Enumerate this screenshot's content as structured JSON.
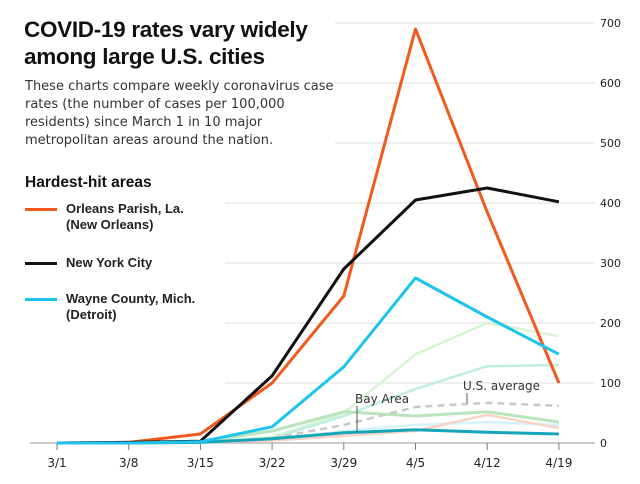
{
  "title": "COVID-19 rates vary widely among large U.S. cities",
  "subtitle": "These charts compare weekly coronavirus case rates (the number of cases per 100,000 residents) since March 1 in 10 major metropolitan areas around the nation.",
  "legend": {
    "heading": "Hardest-hit areas",
    "items": [
      {
        "line1": "Orleans Parish, La.",
        "line2": "(New Orleans)",
        "color": "#f25a1d"
      },
      {
        "line1": "New York City",
        "line2": "",
        "color": "#111111"
      },
      {
        "line1": "Wayne County, Mich.",
        "line2": "(Detroit)",
        "color": "#1ec3ee"
      }
    ]
  },
  "chart_data": {
    "type": "line",
    "categories": [
      "3/1",
      "3/8",
      "3/15",
      "3/22",
      "3/29",
      "4/5",
      "4/12",
      "4/19"
    ],
    "ylim": [
      0,
      700
    ],
    "yticks": [
      0,
      100,
      200,
      300,
      400,
      500,
      600,
      700
    ],
    "grid": true,
    "annotations": [
      "Bay Area",
      "U.S. average"
    ],
    "series": [
      {
        "name": "",
        "color": "#d7f5d3",
        "width": 2.5,
        "values": [
          0,
          0,
          1,
          10,
          50,
          148,
          200,
          178
        ]
      },
      {
        "name": "",
        "color": "#bfeede",
        "width": 2.5,
        "values": [
          0,
          0,
          1,
          8,
          45,
          90,
          128,
          130
        ]
      },
      {
        "name": "",
        "color": "#d4f3fb",
        "width": 2.5,
        "values": [
          0,
          0,
          1,
          5,
          20,
          30,
          35,
          30
        ]
      },
      {
        "name": "",
        "color": "#f9d4c6",
        "width": 2.5,
        "values": [
          0,
          0,
          1,
          4,
          12,
          20,
          47,
          25
        ]
      },
      {
        "name": "",
        "color": "#b9e4bd",
        "width": 3,
        "values": [
          0,
          0,
          2,
          20,
          52,
          45,
          52,
          35
        ]
      },
      {
        "name": "U.S. average",
        "color": "#c8c8c8",
        "width": 2.5,
        "dashed": true,
        "values": [
          0,
          0,
          1,
          8,
          30,
          60,
          67,
          62
        ]
      },
      {
        "name": "Bay Area",
        "color": "#14a5b8",
        "width": 3,
        "values": [
          0,
          0,
          1,
          7,
          17,
          22,
          18,
          15
        ]
      },
      {
        "name": "Orleans Parish, La. (New Orleans)",
        "color": "#f25a1d",
        "width": 3,
        "values": [
          0,
          1,
          15,
          100,
          245,
          690,
          385,
          100
        ]
      },
      {
        "name": "New York City",
        "color": "#111111",
        "width": 3,
        "values": [
          0,
          1,
          3,
          112,
          290,
          405,
          425,
          402
        ]
      },
      {
        "name": "Wayne County, Mich. (Detroit)",
        "color": "#1ec3ee",
        "width": 3,
        "values": [
          0,
          0,
          2,
          27,
          127,
          275,
          210,
          148
        ]
      }
    ]
  }
}
